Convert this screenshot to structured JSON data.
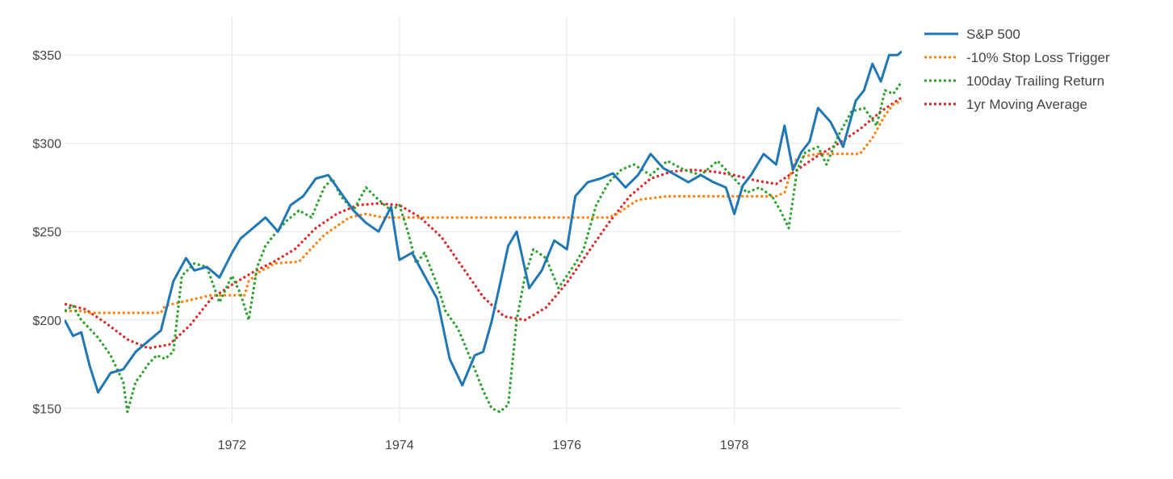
{
  "chart_data": {
    "type": "line",
    "title": "",
    "xlabel": "",
    "ylabel": "",
    "xlim": [
      1970.0,
      1980.0
    ],
    "ylim": [
      141,
      372
    ],
    "x_ticks": [
      1972,
      1974,
      1976,
      1978
    ],
    "x_tick_labels": [
      "1972",
      "1974",
      "1976",
      "1978"
    ],
    "y_ticks": [
      150,
      200,
      250,
      300,
      350
    ],
    "y_tick_labels": [
      "$150",
      "$200",
      "$250",
      "$300",
      "$350"
    ],
    "grid": true,
    "legend_position": "top-right",
    "series": [
      {
        "name": "S&P 500",
        "color": "#1f77b4",
        "dash": "solid",
        "x": [
          1970.0,
          1970.1,
          1970.2,
          1970.3,
          1970.4,
          1970.55,
          1970.7,
          1970.85,
          1971.0,
          1971.15,
          1971.3,
          1971.45,
          1971.55,
          1971.7,
          1971.85,
          1972.0,
          1972.1,
          1972.25,
          1972.4,
          1972.55,
          1972.7,
          1972.85,
          1973.0,
          1973.15,
          1973.3,
          1973.45,
          1973.6,
          1973.75,
          1973.9,
          1974.0,
          1974.15,
          1974.3,
          1974.45,
          1974.6,
          1974.75,
          1974.9,
          1975.0,
          1975.1,
          1975.2,
          1975.3,
          1975.4,
          1975.55,
          1975.7,
          1975.85,
          1976.0,
          1976.1,
          1976.25,
          1976.4,
          1976.55,
          1976.7,
          1976.85,
          1977.0,
          1977.15,
          1977.3,
          1977.45,
          1977.6,
          1977.75,
          1977.9,
          1978.0,
          1978.1,
          1978.2,
          1978.35,
          1978.5,
          1978.6,
          1978.7,
          1978.8,
          1978.9,
          1979.0,
          1979.15,
          1979.3,
          1979.45,
          1979.55,
          1979.65,
          1979.75,
          1979.85,
          1979.95,
          1980.0
        ],
        "y": [
          200,
          191,
          193,
          174,
          159,
          170,
          172,
          182,
          188,
          194,
          222,
          235,
          228,
          230,
          224,
          238,
          246,
          252,
          258,
          250,
          265,
          270,
          280,
          282,
          272,
          262,
          255,
          250,
          264,
          234,
          238,
          225,
          212,
          178,
          163,
          180,
          182,
          199,
          220,
          242,
          250,
          218,
          228,
          245,
          240,
          270,
          278,
          280,
          283,
          275,
          282,
          294,
          286,
          282,
          278,
          282,
          278,
          275,
          260,
          276,
          282,
          294,
          288,
          310,
          285,
          295,
          301,
          320,
          312,
          298,
          324,
          330,
          345,
          335,
          350,
          350,
          352
        ]
      },
      {
        "name": "-10% Stop Loss Trigger",
        "color": "#ff7f0e",
        "dash": "dotted",
        "x": [
          1970.0,
          1970.2,
          1970.3,
          1971.0,
          1971.15,
          1971.2,
          1971.75,
          1971.85,
          1972.15,
          1972.2,
          1972.35,
          1972.45,
          1972.5,
          1972.8,
          1972.9,
          1973.1,
          1973.4,
          1973.6,
          1973.8,
          1974.0,
          1975.0,
          1976.0,
          1976.3,
          1976.5,
          1976.6,
          1976.75,
          1976.85,
          1977.2,
          1978.0,
          1978.2,
          1978.4,
          1978.5,
          1978.6,
          1978.65,
          1978.75,
          1979.0,
          1979.2,
          1979.35,
          1979.5,
          1979.65,
          1979.8,
          1979.9,
          1980.0
        ],
        "y": [
          205,
          205,
          204,
          204,
          204,
          208,
          214,
          214,
          214,
          222,
          228,
          230,
          232,
          233,
          238,
          248,
          258,
          260,
          258,
          258,
          258,
          258,
          258,
          258,
          260,
          265,
          268,
          270,
          270,
          270,
          270,
          270,
          272,
          280,
          292,
          294,
          294,
          294,
          294,
          303,
          316,
          322,
          324
        ]
      },
      {
        "name": "100day Trailing Return",
        "color": "#2ca02c",
        "dash": "dotted",
        "x": [
          1970.0,
          1970.1,
          1970.2,
          1970.3,
          1970.4,
          1970.55,
          1970.7,
          1970.75,
          1970.85,
          1970.9,
          1971.0,
          1971.1,
          1971.2,
          1971.3,
          1971.4,
          1971.55,
          1971.7,
          1971.85,
          1972.0,
          1972.1,
          1972.2,
          1972.3,
          1972.4,
          1972.5,
          1972.65,
          1972.8,
          1972.95,
          1973.1,
          1973.2,
          1973.3,
          1973.45,
          1973.6,
          1973.75,
          1973.9,
          1974.0,
          1974.1,
          1974.2,
          1974.3,
          1974.45,
          1974.55,
          1974.7,
          1974.85,
          1975.0,
          1975.1,
          1975.2,
          1975.3,
          1975.4,
          1975.5,
          1975.6,
          1975.75,
          1975.9,
          1976.0,
          1976.1,
          1976.2,
          1976.35,
          1976.5,
          1976.65,
          1976.8,
          1977.0,
          1977.2,
          1977.4,
          1977.6,
          1977.8,
          1978.0,
          1978.15,
          1978.3,
          1978.45,
          1978.55,
          1978.65,
          1978.75,
          1978.85,
          1979.0,
          1979.1,
          1979.25,
          1979.4,
          1979.55,
          1979.7,
          1979.8,
          1979.9,
          1980.0
        ],
        "y": [
          205,
          208,
          200,
          195,
          190,
          180,
          165,
          148,
          165,
          168,
          175,
          180,
          178,
          182,
          225,
          232,
          230,
          210,
          225,
          215,
          200,
          230,
          242,
          248,
          256,
          262,
          258,
          275,
          280,
          270,
          262,
          275,
          268,
          262,
          265,
          250,
          232,
          238,
          220,
          205,
          195,
          178,
          160,
          150,
          148,
          152,
          200,
          225,
          240,
          235,
          218,
          225,
          232,
          240,
          265,
          278,
          285,
          288,
          282,
          290,
          285,
          282,
          290,
          280,
          272,
          275,
          270,
          262,
          252,
          285,
          295,
          298,
          288,
          305,
          318,
          320,
          310,
          330,
          328,
          335
        ]
      },
      {
        "name": "1yr Moving Average",
        "color": "#d62728",
        "dash": "dotted",
        "x": [
          1970.0,
          1970.25,
          1970.5,
          1970.75,
          1971.0,
          1971.25,
          1971.5,
          1971.75,
          1972.0,
          1972.25,
          1972.5,
          1972.75,
          1973.0,
          1973.25,
          1973.5,
          1973.75,
          1974.0,
          1974.25,
          1974.5,
          1974.75,
          1975.0,
          1975.25,
          1975.5,
          1975.75,
          1976.0,
          1976.25,
          1976.5,
          1976.75,
          1977.0,
          1977.25,
          1977.5,
          1977.75,
          1978.0,
          1978.25,
          1978.5,
          1978.75,
          1979.0,
          1979.25,
          1979.5,
          1979.75,
          1980.0
        ],
        "y": [
          209,
          206,
          198,
          189,
          184,
          186,
          197,
          212,
          220,
          227,
          233,
          240,
          252,
          260,
          265,
          266,
          265,
          258,
          247,
          230,
          213,
          202,
          200,
          207,
          221,
          238,
          255,
          270,
          280,
          284,
          285,
          284,
          282,
          279,
          277,
          285,
          293,
          300,
          308,
          318,
          326
        ]
      }
    ]
  }
}
